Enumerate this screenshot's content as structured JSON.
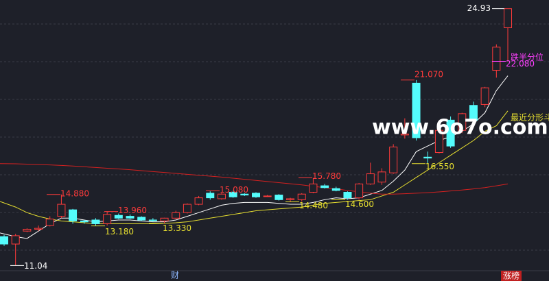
{
  "chart_data": {
    "type": "candlestick",
    "ylim": [
      10.2,
      25.4
    ],
    "up_color": "#ff3b3b",
    "down_color": "#54fcfc",
    "open": [
      12.6,
      12.2,
      12.9,
      13.0,
      13.2,
      13.7,
      14.05,
      13.45,
      13.5,
      13.3,
      13.75,
      13.7,
      13.65,
      13.5,
      13.45,
      13.6,
      13.9,
      14.35,
      14.95,
      14.65,
      15.0,
      14.9,
      14.95,
      14.8,
      14.85,
      14.6,
      14.6,
      15.0,
      15.35,
      15.2,
      15.0,
      14.7,
      15.45,
      15.55,
      16.05,
      18.1,
      20.9,
      16.9,
      17.15,
      18.9,
      18.35,
      19.7,
      19.75,
      21.6,
      23.9
    ],
    "high": [
      12.7,
      12.75,
      13.05,
      13.2,
      13.7,
      14.88,
      14.1,
      13.5,
      13.6,
      13.96,
      13.85,
      13.8,
      13.7,
      13.6,
      13.62,
      14.0,
      14.4,
      14.8,
      15.05,
      14.95,
      15.08,
      14.95,
      15.0,
      14.85,
      14.9,
      14.7,
      14.95,
      15.78,
      15.45,
      15.3,
      15.05,
      15.5,
      16.6,
      16.3,
      17.6,
      19.0,
      21.07,
      17.2,
      18.6,
      19.1,
      19.3,
      19.9,
      20.7,
      23.0,
      24.93
    ],
    "low": [
      12.1,
      11.04,
      12.85,
      12.9,
      13.15,
      13.6,
      13.3,
      13.3,
      13.18,
      13.2,
      13.55,
      13.55,
      13.45,
      13.4,
      13.33,
      13.55,
      13.85,
      14.3,
      14.6,
      14.6,
      14.7,
      14.8,
      14.7,
      14.75,
      14.55,
      14.48,
      14.5,
      14.95,
      15.2,
      15.05,
      14.6,
      14.6,
      15.4,
      15.4,
      16.0,
      17.9,
      17.8,
      16.55,
      17.1,
      17.4,
      18.2,
      18.9,
      19.6,
      21.2,
      22.08
    ],
    "close": [
      12.2,
      12.65,
      13.0,
      13.05,
      13.55,
      14.35,
      13.45,
      13.4,
      13.3,
      13.8,
      13.6,
      13.6,
      13.5,
      13.48,
      13.6,
      13.9,
      14.35,
      14.7,
      14.7,
      14.9,
      14.75,
      14.85,
      14.75,
      14.8,
      14.6,
      14.65,
      14.9,
      15.45,
      15.25,
      15.1,
      14.7,
      15.45,
      16.0,
      16.1,
      17.45,
      18.15,
      17.95,
      16.85,
      18.35,
      17.5,
      19.25,
      18.9,
      20.65,
      22.85,
      24.93
    ],
    "lines": [
      {
        "color": "#ffffff",
        "values": [
          12.8,
          12.6,
          12.5,
          12.9,
          13.3,
          13.6,
          13.6,
          13.5,
          13.4,
          13.45,
          13.5,
          13.5,
          13.45,
          13.4,
          13.4,
          13.5,
          13.7,
          13.9,
          14.1,
          14.3,
          14.4,
          14.45,
          14.45,
          14.45,
          14.4,
          14.35,
          14.35,
          14.45,
          14.6,
          14.7,
          14.65,
          14.7,
          14.9,
          15.1,
          15.6,
          16.2,
          17.2,
          17.5,
          17.8,
          18.0,
          18.3,
          18.7,
          19.3,
          20.5,
          21.3
        ]
      },
      {
        "color": "#e8e030",
        "values": [
          14.5,
          14.2,
          13.9,
          13.7,
          13.55,
          13.45,
          13.4,
          13.35,
          13.3,
          13.3,
          13.3,
          13.3,
          13.3,
          13.3,
          13.32,
          13.35,
          13.4,
          13.5,
          13.6,
          13.7,
          13.8,
          13.9,
          14.0,
          14.05,
          14.1,
          14.15,
          14.2,
          14.3,
          14.4,
          14.45,
          14.5,
          14.55,
          14.6,
          14.8,
          15.0,
          15.4,
          15.8,
          16.2,
          16.6,
          17.0,
          17.4,
          17.8,
          18.3,
          18.6,
          19.4
        ]
      },
      {
        "color": "#d42020",
        "values": [
          16.55,
          16.54,
          16.52,
          16.5,
          16.48,
          16.45,
          16.42,
          16.38,
          16.34,
          16.3,
          16.26,
          16.22,
          16.17,
          16.12,
          16.07,
          16.02,
          15.97,
          15.92,
          15.87,
          15.82,
          15.76,
          15.7,
          15.64,
          15.58,
          15.52,
          15.46,
          15.4,
          15.32,
          15.25,
          15.18,
          15.1,
          15.02,
          14.95,
          14.9,
          14.9,
          14.92,
          14.95,
          14.98,
          15.02,
          15.07,
          15.12,
          15.18,
          15.25,
          15.35,
          15.45
        ]
      }
    ],
    "annotations": [
      {
        "value": 24.93,
        "label": "24.93",
        "color": "#ffffff"
      },
      {
        "value": 22.08,
        "label": "22.080",
        "color": "#ff40ff"
      },
      {
        "value": 21.07,
        "label": "21.070",
        "color": "#ff3b3b"
      },
      {
        "value": 16.55,
        "label": "16.550",
        "color": "#e8e030"
      },
      {
        "value": 15.78,
        "label": "15.780",
        "color": "#ff3b3b"
      },
      {
        "value": 15.08,
        "label": "15.080",
        "color": "#ff3b3b"
      },
      {
        "value": 14.88,
        "label": "14.880",
        "color": "#ff3b3b"
      },
      {
        "value": 14.48,
        "label": "14.480",
        "color": "#e8e030"
      },
      {
        "value": 14.6,
        "label": "14.600",
        "color": "#e8e030"
      },
      {
        "value": 13.96,
        "label": "13.960",
        "color": "#ff3b3b"
      },
      {
        "value": 13.33,
        "label": "13.330",
        "color": "#e8e030"
      },
      {
        "value": 13.18,
        "label": "13.180",
        "color": "#e8e030"
      },
      {
        "value": 11.04,
        "label": "11.04",
        "color": "#ffffff"
      }
    ],
    "resistance_label": "跌半分位",
    "fractal_label": "最近分形斗",
    "watermark": "www.6o7o.com",
    "bottom_marker": "财",
    "badge": "涨榜"
  }
}
